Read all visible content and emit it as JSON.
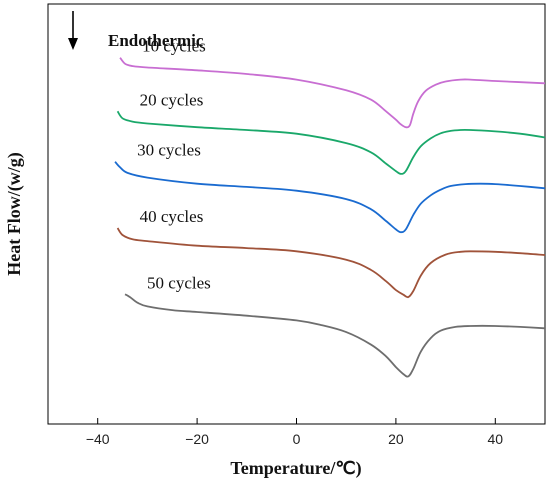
{
  "chart_data": {
    "type": "line",
    "xlabel": "Temperature/℃)",
    "ylabel": "Heat Flow/(w/g)",
    "xlim": [
      -50,
      50
    ],
    "x_ticks": [
      -40,
      -20,
      0,
      20,
      40
    ],
    "x_tick_labels": [
      "−40",
      "−20",
      "0",
      "20",
      "40"
    ],
    "y_ticks_shown": false,
    "grid": false,
    "annotation": {
      "arrow": "down",
      "text": "Endothermic"
    },
    "series": [
      {
        "name": "10 cycles",
        "color": "#c86ed2",
        "x": [
          -35.5,
          -34.5,
          -33,
          -30,
          -20,
          -10,
          0,
          10,
          15,
          18,
          20,
          21,
          22,
          22.8,
          23.5,
          24.5,
          26,
          28,
          30,
          33,
          35,
          40,
          50
        ],
        "y": [
          7.85,
          7.72,
          7.67,
          7.64,
          7.58,
          7.5,
          7.38,
          7.15,
          6.95,
          6.7,
          6.52,
          6.42,
          6.36,
          6.4,
          6.65,
          6.92,
          7.14,
          7.27,
          7.34,
          7.38,
          7.38,
          7.35,
          7.3
        ]
      },
      {
        "name": "20 cycles",
        "color": "#1aa86a",
        "x": [
          -36,
          -35,
          -33,
          -30,
          -20,
          -10,
          0,
          10,
          15,
          18,
          20,
          21,
          22,
          23.5,
          25,
          27,
          29,
          31,
          33,
          35,
          40,
          45,
          50
        ],
        "y": [
          6.7,
          6.55,
          6.48,
          6.44,
          6.36,
          6.3,
          6.22,
          6.02,
          5.82,
          5.58,
          5.42,
          5.36,
          5.42,
          5.72,
          5.95,
          6.12,
          6.23,
          6.28,
          6.3,
          6.3,
          6.27,
          6.22,
          6.14
        ]
      },
      {
        "name": "30 cycles",
        "color": "#1a6bd0",
        "x": [
          -36.5,
          -35.5,
          -34,
          -30,
          -20,
          -10,
          0,
          10,
          15,
          18,
          20,
          21,
          22,
          23.5,
          25,
          27,
          29,
          31,
          34,
          37,
          40,
          45,
          50
        ],
        "y": [
          5.62,
          5.5,
          5.38,
          5.28,
          5.15,
          5.08,
          5.0,
          4.82,
          4.6,
          4.35,
          4.17,
          4.11,
          4.17,
          4.48,
          4.72,
          4.9,
          5.02,
          5.1,
          5.14,
          5.15,
          5.14,
          5.1,
          5.05
        ]
      },
      {
        "name": "40 cycles",
        "color": "#a0533a",
        "x": [
          -36,
          -35,
          -33,
          -30,
          -20,
          -10,
          0,
          10,
          15,
          18,
          20,
          21.5,
          22.5,
          23.5,
          25,
          27,
          30,
          33,
          35,
          40,
          45,
          50
        ],
        "y": [
          4.2,
          4.05,
          3.96,
          3.92,
          3.82,
          3.77,
          3.7,
          3.52,
          3.3,
          3.06,
          2.87,
          2.77,
          2.72,
          2.85,
          3.18,
          3.45,
          3.63,
          3.69,
          3.7,
          3.69,
          3.66,
          3.62
        ]
      },
      {
        "name": "50 cycles",
        "color": "#6e6e6e",
        "x": [
          -34.5,
          -33.5,
          -32,
          -30,
          -25,
          -20,
          -10,
          0,
          5,
          10,
          15,
          18,
          20,
          21.5,
          22.5,
          23.5,
          25,
          27,
          29,
          32,
          35,
          40,
          45,
          50
        ],
        "y": [
          2.78,
          2.72,
          2.6,
          2.52,
          2.44,
          2.4,
          2.32,
          2.22,
          2.12,
          1.97,
          1.7,
          1.45,
          1.22,
          1.07,
          1.02,
          1.18,
          1.55,
          1.84,
          2.0,
          2.08,
          2.1,
          2.1,
          2.08,
          2.05
        ]
      }
    ]
  }
}
